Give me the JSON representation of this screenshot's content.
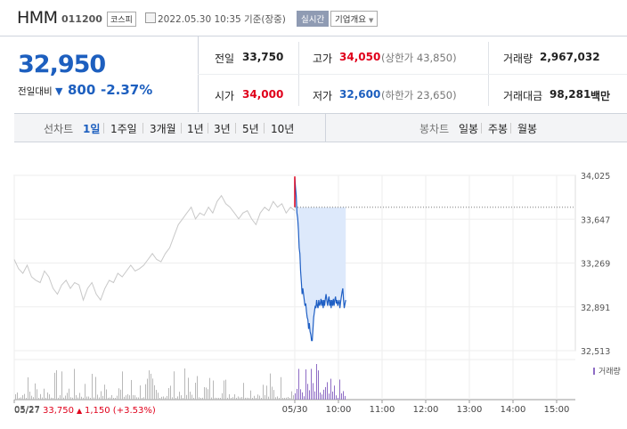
{
  "header": {
    "stock_name": "HMM",
    "stock_code": "011200",
    "market": "코스피",
    "datetime": "2022.05.30 10:35 기준(장중)",
    "realtime_label": "실시간",
    "company_info_label": "기업개요",
    "company_info_icon": "caret-down-icon"
  },
  "price": {
    "current": "32,950",
    "prev_label": "전일대비",
    "direction_icon": "down-triangle-icon",
    "change": "800",
    "change_pct": "-2.37%",
    "color_down": "#1d5fbf",
    "color_up": "#e0001b"
  },
  "stats": {
    "prev_close_label": "전일",
    "prev_close": "33,750",
    "open_label": "시가",
    "open": "34,000",
    "high_label": "고가",
    "high": "34,050",
    "upper_limit": "(상한가 43,850)",
    "low_label": "저가",
    "low": "32,600",
    "lower_limit": "(하한가 23,650)",
    "volume_label": "거래량",
    "volume": "2,967,032",
    "amount_label": "거래대금",
    "amount": "98,281",
    "amount_unit": "백만"
  },
  "tabs": {
    "line_label": "선차트",
    "line_items": [
      "1일",
      "1주일",
      "3개월",
      "1년",
      "3년",
      "5년",
      "10년"
    ],
    "active": "1일",
    "candle_label": "봉차트",
    "candle_items": [
      "일봉",
      "주봉",
      "월봉"
    ]
  },
  "chart_data": {
    "type": "line",
    "y_ticks": [
      "34,025",
      "33,647",
      "33,269",
      "32,891",
      "32,513"
    ],
    "ylim": [
      32513,
      34025
    ],
    "x_ticks": [
      "05/27",
      "05/30",
      "10:00",
      "11:00",
      "12:00",
      "13:00",
      "14:00",
      "15:00"
    ],
    "prev_day_label": "05/27",
    "prev_close_text": "33,750",
    "prev_change_icon": "up-triangle-icon",
    "prev_change": "1,150 (+3.53%)",
    "volume_legend": "거래량",
    "prev_close_line": 33750,
    "today_color": "#1f5fc4",
    "prevday_color": "#c8c8c8",
    "today_series": [
      [
        "09:00",
        34000
      ],
      [
        "09:01",
        33920
      ],
      [
        "09:02",
        33850
      ],
      [
        "09:03",
        33700
      ],
      [
        "09:04",
        33650
      ],
      [
        "09:05",
        33550
      ],
      [
        "09:06",
        33400
      ],
      [
        "09:07",
        33350
      ],
      [
        "09:08",
        33200
      ],
      [
        "09:09",
        33100
      ],
      [
        "09:10",
        33000
      ],
      [
        "09:11",
        33050
      ],
      [
        "09:12",
        33000
      ],
      [
        "09:13",
        32950
      ],
      [
        "09:14",
        32900
      ],
      [
        "09:15",
        32920
      ],
      [
        "09:16",
        32850
      ],
      [
        "09:17",
        32800
      ],
      [
        "09:18",
        32780
      ],
      [
        "09:19",
        32700
      ],
      [
        "09:20",
        32750
      ],
      [
        "09:21",
        32680
      ],
      [
        "09:22",
        32650
      ],
      [
        "09:23",
        32600
      ],
      [
        "09:24",
        32600
      ],
      [
        "09:25",
        32700
      ],
      [
        "09:26",
        32800
      ],
      [
        "09:27",
        32850
      ],
      [
        "09:28",
        32900
      ],
      [
        "09:29",
        32880
      ],
      [
        "09:30",
        32950
      ],
      [
        "09:31",
        32900
      ],
      [
        "09:32",
        32880
      ],
      [
        "09:33",
        32950
      ],
      [
        "09:34",
        32900
      ],
      [
        "09:35",
        32920
      ],
      [
        "09:36",
        32960
      ],
      [
        "09:37",
        32900
      ],
      [
        "09:38",
        32950
      ],
      [
        "09:39",
        32880
      ],
      [
        "09:40",
        32950
      ],
      [
        "09:41",
        32900
      ],
      [
        "09:42",
        32960
      ],
      [
        "09:43",
        33000
      ],
      [
        "09:44",
        32950
      ],
      [
        "09:45",
        32900
      ],
      [
        "09:46",
        32950
      ],
      [
        "09:47",
        32980
      ],
      [
        "09:48",
        32900
      ],
      [
        "09:49",
        32950
      ],
      [
        "09:50",
        32880
      ],
      [
        "09:51",
        32950
      ],
      [
        "09:52",
        32900
      ],
      [
        "09:53",
        32960
      ],
      [
        "09:54",
        32900
      ],
      [
        "09:55",
        32950
      ],
      [
        "09:56",
        32980
      ],
      [
        "09:57",
        32920
      ],
      [
        "09:58",
        32950
      ],
      [
        "09:59",
        32900
      ],
      [
        "10:00",
        32930
      ],
      [
        "10:01",
        32950
      ],
      [
        "10:02",
        32880
      ],
      [
        "10:03",
        32930
      ],
      [
        "10:04",
        32980
      ],
      [
        "10:05",
        33020
      ],
      [
        "10:06",
        33050
      ],
      [
        "10:07",
        32950
      ],
      [
        "10:08",
        32880
      ],
      [
        "10:09",
        32920
      ],
      [
        "10:10",
        32950
      ]
    ],
    "prev_series": [
      33300,
      33220,
      33180,
      33250,
      33150,
      33120,
      33100,
      33200,
      33150,
      33050,
      33000,
      33080,
      33120,
      33050,
      33100,
      33080,
      32950,
      33050,
      33100,
      33000,
      32950,
      33050,
      33120,
      33100,
      33180,
      33150,
      33200,
      33250,
      33200,
      33220,
      33250,
      33300,
      33350,
      33300,
      33280,
      33350,
      33400,
      33500,
      33600,
      33650,
      33700,
      33750,
      33650,
      33700,
      33680,
      33750,
      33700,
      33800,
      33850,
      33780,
      33750,
      33700,
      33650,
      33700,
      33720,
      33650,
      33600,
      33700,
      33750,
      33720,
      33800,
      33750,
      33780,
      33700,
      33750,
      33720
    ]
  }
}
